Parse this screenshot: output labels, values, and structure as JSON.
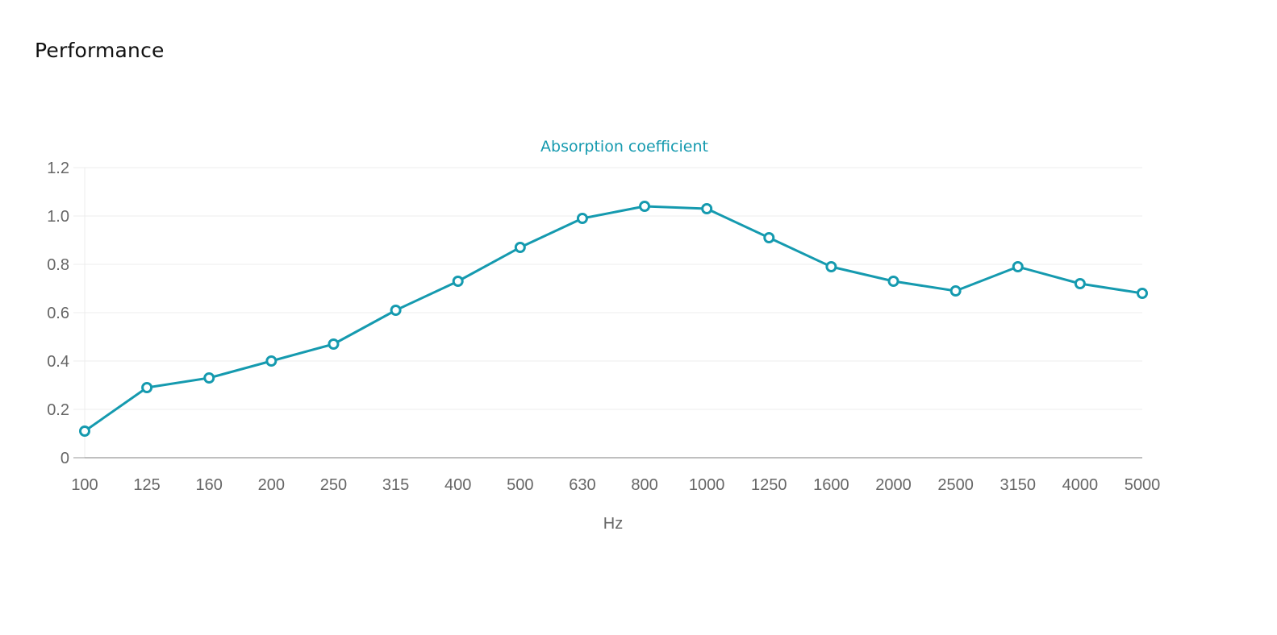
{
  "page": {
    "section_title": "Performance"
  },
  "colors": {
    "series": "#159aaf",
    "grid": "#ececec",
    "axis": "#999999",
    "tick_text": "#666666"
  },
  "chart_data": {
    "type": "line",
    "title": "Absorption coefficient",
    "xlabel": "Hz",
    "ylabel": "",
    "categories": [
      "100",
      "125",
      "160",
      "200",
      "250",
      "315",
      "400",
      "500",
      "630",
      "800",
      "1000",
      "1250",
      "1600",
      "2000",
      "2500",
      "3150",
      "4000",
      "5000"
    ],
    "series": [
      {
        "values": [
          0.11,
          0.29,
          0.33,
          0.4,
          0.47,
          0.61,
          0.73,
          0.87,
          0.99,
          1.04,
          1.03,
          0.91,
          0.79,
          0.73,
          0.69,
          0.79,
          0.72,
          0.68
        ]
      }
    ],
    "ylim": [
      0,
      1.2
    ],
    "yticks": [
      "0",
      "0.2",
      "0.4",
      "0.6",
      "0.8",
      "1.0",
      "1.2"
    ],
    "grid": true,
    "legend": "none"
  }
}
